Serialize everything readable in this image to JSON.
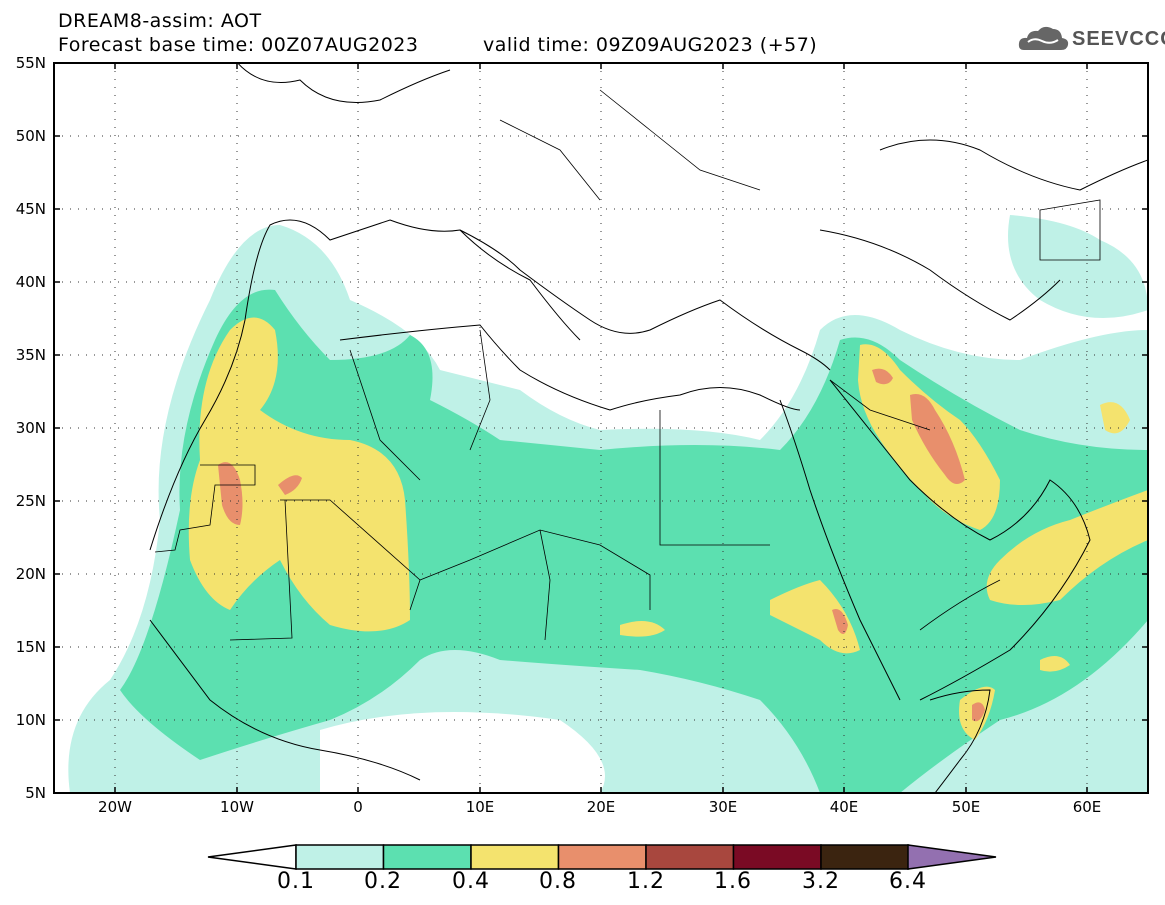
{
  "title": {
    "line1": "DREAM8-assim: AOT",
    "line2": "Forecast base time: 00Z07AUG2023",
    "valid": "valid time: 09Z09AUG2023 (+57)"
  },
  "logo": {
    "text": "SEEVCCC",
    "icon": "cloud-icon"
  },
  "map": {
    "lat_labels": [
      "55N",
      "50N",
      "45N",
      "40N",
      "35N",
      "30N",
      "25N",
      "20N",
      "15N",
      "10N",
      "5N"
    ],
    "lon_labels": [
      "20W",
      "10W",
      "0",
      "10E",
      "20E",
      "30E",
      "40E",
      "50E",
      "60E"
    ],
    "lat_range": [
      5,
      55
    ],
    "lon_range": [
      -25,
      65
    ],
    "grid": "dotted"
  },
  "colorbar": {
    "levels": [
      "0.1",
      "0.2",
      "0.4",
      "0.8",
      "1.2",
      "1.6",
      "3.2",
      "6.4"
    ],
    "colors": [
      "#bff1e7",
      "#5ce0b0",
      "#f4e36e",
      "#e88f6c",
      "#a8473e",
      "#7a0a24",
      "#3b2410",
      "#9370b0"
    ],
    "under_color": "#ffffff"
  }
}
